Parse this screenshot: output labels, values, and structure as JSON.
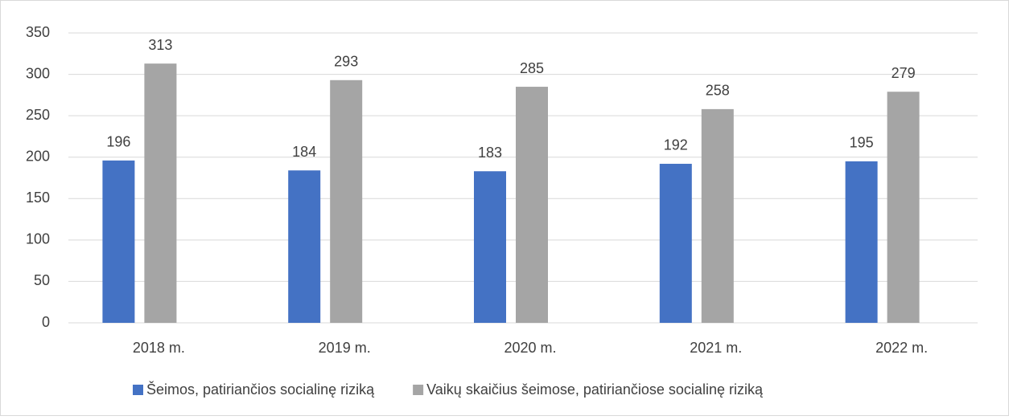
{
  "chart_data": {
    "type": "bar",
    "categories": [
      "2018 m.",
      "2019 m.",
      "2020 m.",
      "2021 m.",
      "2022 m."
    ],
    "series": [
      {
        "name": "Šeimos, patiriančios socialinę riziką",
        "color": "#4472c4",
        "values": [
          196,
          184,
          183,
          192,
          195
        ]
      },
      {
        "name": "Vaikų skaičius šeimose, patiriančiose socialinę riziką",
        "color": "#a5a5a5",
        "values": [
          313,
          293,
          285,
          258,
          279
        ]
      }
    ],
    "ylim": [
      0,
      350
    ],
    "yticks": [
      0,
      50,
      100,
      150,
      200,
      250,
      300,
      350
    ],
    "grid": true,
    "legend": "bottom"
  }
}
